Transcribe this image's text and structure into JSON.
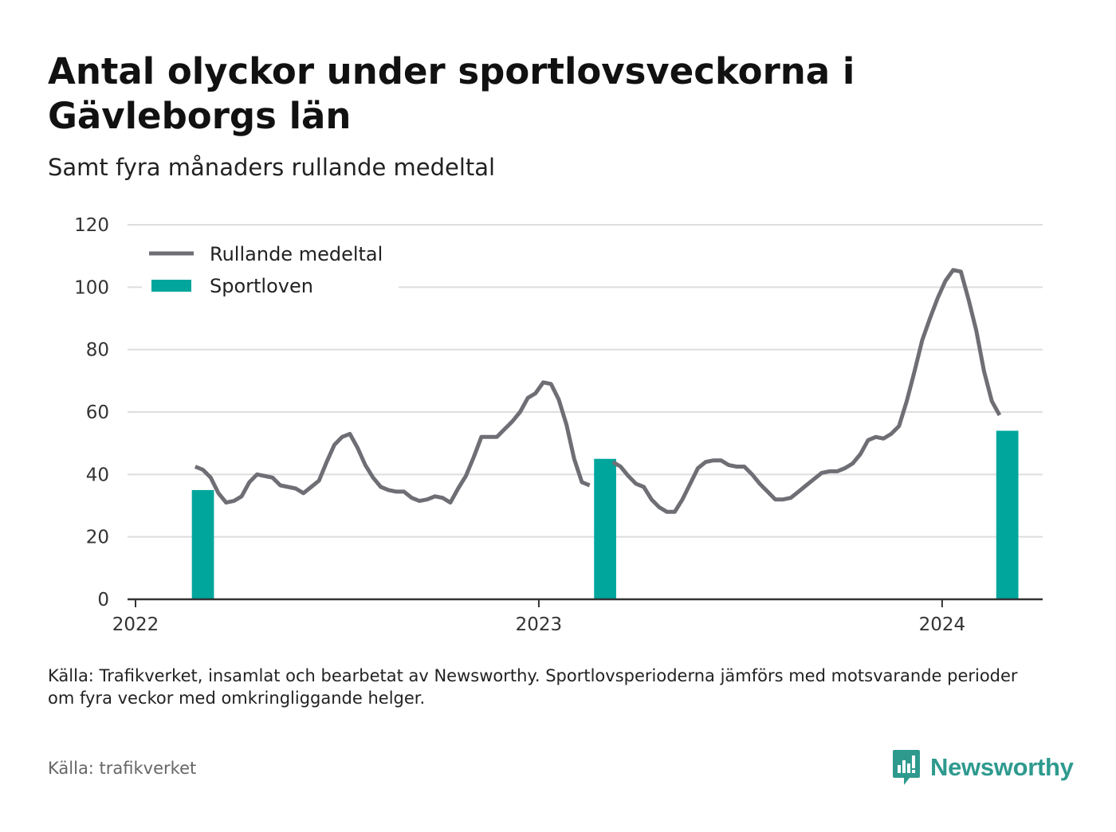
{
  "title": "Antal olyckor under sportlovsveckorna i Gävleborgs län",
  "subtitle": "Samt fyra månaders rullande medeltal",
  "note": "Källa: Trafikverket, insamlat och bearbetat av Newsworthy. Sportlovsperioderna jämförs med motsvarande perioder om fyra veckor med omkringliggande helger.",
  "source": "Källa: trafikverket",
  "logo_text": "Newsworthy",
  "colors": {
    "line": "#6e6e75",
    "bar": "#00a69c",
    "grid": "#dddddd",
    "axis": "#333333",
    "logo": "#2e9a8e"
  },
  "chart_data": {
    "type": "bar+line",
    "ylim": [
      0,
      120
    ],
    "yticks": [
      "0",
      "20",
      "40",
      "60",
      "80",
      "100",
      "120"
    ],
    "xlim": [
      "2022-01-01",
      "2024-04-01"
    ],
    "xticks": [
      {
        "date": "2022-01-01",
        "label": "2022"
      },
      {
        "date": "2023-01-01",
        "label": "2023"
      },
      {
        "date": "2024-01-01",
        "label": "2024"
      }
    ],
    "grid": true,
    "legend_position": "top-left",
    "legend": [
      {
        "label": "Rullande medeltal",
        "type": "line"
      },
      {
        "label": "Sportloven",
        "type": "bar"
      }
    ],
    "bars": [
      {
        "start": "2022-02-21",
        "end": "2022-03-13",
        "value": 35
      },
      {
        "start": "2023-02-20",
        "end": "2023-03-12",
        "value": 45
      },
      {
        "start": "2024-02-19",
        "end": "2024-03-10",
        "value": 54
      }
    ],
    "series": [
      {
        "name": "Rullande medeltal",
        "segments": [
          [
            [
              "2022-02-24",
              42.5
            ],
            [
              "2022-03-03",
              41.5
            ],
            [
              "2022-03-10",
              39
            ],
            [
              "2022-03-17",
              34
            ],
            [
              "2022-03-24",
              31
            ],
            [
              "2022-03-31",
              31.5
            ],
            [
              "2022-04-07",
              33
            ],
            [
              "2022-04-14",
              37.5
            ],
            [
              "2022-04-21",
              40
            ],
            [
              "2022-04-28",
              39.5
            ],
            [
              "2022-05-05",
              39
            ],
            [
              "2022-05-12",
              36.5
            ],
            [
              "2022-05-19",
              36
            ],
            [
              "2022-05-26",
              35.5
            ],
            [
              "2022-06-02",
              34
            ],
            [
              "2022-06-09",
              36
            ],
            [
              "2022-06-16",
              38
            ],
            [
              "2022-06-23",
              44
            ],
            [
              "2022-06-30",
              49.5
            ],
            [
              "2022-07-07",
              52
            ],
            [
              "2022-07-14",
              53
            ],
            [
              "2022-07-21",
              48.5
            ],
            [
              "2022-07-28",
              43
            ],
            [
              "2022-08-04",
              39
            ],
            [
              "2022-08-11",
              36
            ],
            [
              "2022-08-18",
              35
            ],
            [
              "2022-08-25",
              34.5
            ],
            [
              "2022-09-01",
              34.5
            ],
            [
              "2022-09-08",
              32.5
            ],
            [
              "2022-09-15",
              31.5
            ],
            [
              "2022-09-22",
              32
            ],
            [
              "2022-09-29",
              33
            ],
            [
              "2022-10-06",
              32.5
            ],
            [
              "2022-10-13",
              31
            ],
            [
              "2022-10-20",
              35.5
            ],
            [
              "2022-10-27",
              39.5
            ],
            [
              "2022-11-03",
              45.5
            ],
            [
              "2022-11-10",
              52
            ],
            [
              "2022-11-17",
              52
            ],
            [
              "2022-11-24",
              52
            ],
            [
              "2022-12-01",
              54.5
            ],
            [
              "2022-12-08",
              57
            ],
            [
              "2022-12-15",
              60
            ],
            [
              "2022-12-22",
              64.5
            ],
            [
              "2022-12-29",
              66
            ],
            [
              "2023-01-05",
              69.5
            ],
            [
              "2023-01-12",
              69
            ],
            [
              "2023-01-19",
              64
            ],
            [
              "2023-01-26",
              56
            ],
            [
              "2023-02-02",
              45
            ],
            [
              "2023-02-09",
              37.5
            ],
            [
              "2023-02-16",
              36.5
            ]
          ],
          [
            [
              "2023-03-09",
              44
            ],
            [
              "2023-03-16",
              42.5
            ],
            [
              "2023-03-23",
              39.5
            ],
            [
              "2023-03-30",
              37
            ],
            [
              "2023-04-06",
              36
            ],
            [
              "2023-04-13",
              32
            ],
            [
              "2023-04-20",
              29.5
            ],
            [
              "2023-04-27",
              28
            ],
            [
              "2023-05-04",
              28
            ],
            [
              "2023-05-11",
              32
            ],
            [
              "2023-05-18",
              37
            ],
            [
              "2023-05-25",
              42
            ],
            [
              "2023-06-01",
              44
            ],
            [
              "2023-06-08",
              44.5
            ],
            [
              "2023-06-15",
              44.5
            ],
            [
              "2023-06-22",
              43
            ],
            [
              "2023-06-29",
              42.5
            ],
            [
              "2023-07-06",
              42.5
            ],
            [
              "2023-07-13",
              40
            ],
            [
              "2023-07-20",
              37
            ],
            [
              "2023-07-27",
              34.5
            ],
            [
              "2023-08-03",
              32
            ],
            [
              "2023-08-10",
              32
            ],
            [
              "2023-08-17",
              32.5
            ],
            [
              "2023-08-24",
              34.5
            ],
            [
              "2023-08-31",
              36.5
            ],
            [
              "2023-09-07",
              38.5
            ],
            [
              "2023-09-14",
              40.5
            ],
            [
              "2023-09-21",
              41
            ],
            [
              "2023-09-28",
              41
            ],
            [
              "2023-10-05",
              42
            ],
            [
              "2023-10-12",
              43.5
            ],
            [
              "2023-10-19",
              46.5
            ],
            [
              "2023-10-26",
              51
            ],
            [
              "2023-11-02",
              52
            ],
            [
              "2023-11-09",
              51.5
            ],
            [
              "2023-11-16",
              53
            ],
            [
              "2023-11-23",
              55.5
            ],
            [
              "2023-11-30",
              63.5
            ],
            [
              "2023-12-07",
              73
            ],
            [
              "2023-12-14",
              83
            ],
            [
              "2023-12-21",
              90
            ],
            [
              "2023-12-28",
              96.5
            ],
            [
              "2024-01-04",
              102
            ],
            [
              "2024-01-11",
              105.5
            ],
            [
              "2024-01-18",
              105
            ],
            [
              "2024-01-25",
              96
            ],
            [
              "2024-02-01",
              86
            ],
            [
              "2024-02-08",
              73
            ],
            [
              "2024-02-15",
              63.5
            ],
            [
              "2024-02-22",
              59
            ]
          ]
        ]
      }
    ]
  }
}
